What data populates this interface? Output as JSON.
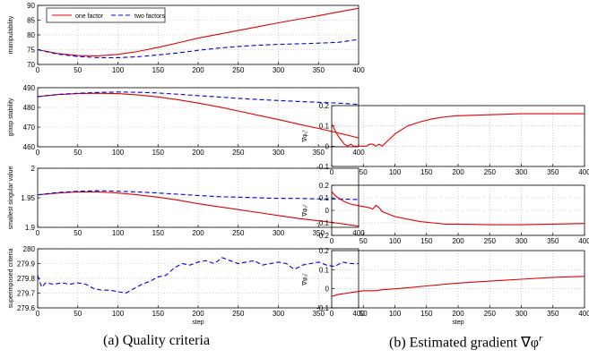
{
  "captions": {
    "a": "(a) Quality criteria",
    "b": "(b) Estimated gradient ∇φ"
  },
  "captions_superscript_b": "r",
  "chart_data": [
    {
      "id": "manipulability",
      "type": "line",
      "title": "",
      "xlabel": "",
      "ylabel": "manipulability",
      "xlim": [
        0,
        400
      ],
      "ylim": [
        70,
        90
      ],
      "xticks": [
        0,
        50,
        100,
        150,
        200,
        250,
        300,
        350,
        400
      ],
      "yticks": [
        70,
        75,
        80,
        85,
        90
      ],
      "grid": true,
      "legend": "top-left",
      "series": [
        {
          "name": "one factor",
          "color": "#e00000",
          "style": "solid",
          "x": [
            0,
            25,
            50,
            75,
            100,
            125,
            150,
            175,
            200,
            225,
            250,
            275,
            300,
            325,
            350,
            375,
            400
          ],
          "y": [
            75,
            73.7,
            73.0,
            72.9,
            73.4,
            74.4,
            75.8,
            77.3,
            78.9,
            80.2,
            81.5,
            82.8,
            84.1,
            85.3,
            86.5,
            87.8,
            89.0
          ]
        },
        {
          "name": "two factors",
          "color": "#0000dd",
          "style": "dashed",
          "x": [
            0,
            25,
            50,
            75,
            100,
            125,
            150,
            175,
            200,
            225,
            250,
            275,
            300,
            325,
            350,
            375,
            400
          ],
          "y": [
            75,
            73.5,
            72.7,
            72.3,
            72.3,
            72.6,
            73.2,
            73.9,
            74.8,
            75.5,
            76.1,
            76.5,
            76.8,
            77.0,
            77.2,
            77.5,
            78.5
          ]
        }
      ]
    },
    {
      "id": "grasp-stability",
      "type": "line",
      "title": "",
      "xlabel": "",
      "ylabel": "grasp stability",
      "xlim": [
        0,
        400
      ],
      "ylim": [
        460,
        490
      ],
      "xticks": [
        0,
        50,
        100,
        150,
        200,
        250,
        300,
        350,
        400
      ],
      "yticks": [
        460,
        470,
        480,
        490
      ],
      "grid": true,
      "series": [
        {
          "name": "",
          "color": "#e00000",
          "style": "solid",
          "x": [
            0,
            25,
            50,
            75,
            100,
            125,
            150,
            175,
            200,
            225,
            250,
            275,
            300,
            325,
            350,
            375,
            400
          ],
          "y": [
            485.5,
            486.5,
            487.0,
            487.2,
            487.0,
            486.3,
            485.3,
            483.9,
            482.2,
            480.3,
            478.2,
            476.0,
            473.8,
            471.5,
            469.3,
            467.0,
            464.5
          ]
        },
        {
          "name": "",
          "color": "#0000dd",
          "style": "dashed",
          "x": [
            0,
            25,
            50,
            75,
            100,
            125,
            150,
            175,
            200,
            225,
            250,
            275,
            300,
            325,
            350,
            375,
            400
          ],
          "y": [
            485.5,
            486.6,
            487.2,
            487.6,
            487.8,
            487.7,
            487.3,
            486.7,
            486.0,
            485.3,
            484.6,
            484.0,
            483.5,
            483.0,
            482.6,
            482.2,
            481.5
          ]
        }
      ]
    },
    {
      "id": "smallest-singular-value",
      "type": "line",
      "title": "",
      "xlabel": "",
      "ylabel": "smallest singular value",
      "xlim": [
        0,
        400
      ],
      "ylim": [
        1.9,
        2.0
      ],
      "xticks": [
        0,
        50,
        100,
        150,
        200,
        250,
        300,
        350,
        400
      ],
      "yticks": [
        1.9,
        1.95,
        2
      ],
      "grid": true,
      "series": [
        {
          "name": "",
          "color": "#e00000",
          "style": "solid",
          "x": [
            0,
            25,
            50,
            75,
            100,
            125,
            150,
            175,
            200,
            225,
            250,
            275,
            300,
            325,
            350,
            375,
            400
          ],
          "y": [
            1.955,
            1.958,
            1.96,
            1.96,
            1.958,
            1.955,
            1.951,
            1.946,
            1.94,
            1.935,
            1.93,
            1.925,
            1.92,
            1.915,
            1.911,
            1.907,
            1.902
          ]
        },
        {
          "name": "",
          "color": "#0000dd",
          "style": "dashed",
          "x": [
            0,
            25,
            50,
            75,
            100,
            125,
            150,
            175,
            200,
            225,
            250,
            275,
            300,
            325,
            350,
            375,
            400
          ],
          "y": [
            1.955,
            1.959,
            1.961,
            1.962,
            1.961,
            1.96,
            1.958,
            1.956,
            1.954,
            1.952,
            1.951,
            1.95,
            1.949,
            1.949,
            1.948,
            1.948,
            1.947
          ]
        }
      ]
    },
    {
      "id": "superimposed-criteria",
      "type": "line",
      "title": "",
      "xlabel": "step",
      "ylabel": "superimposed criteria",
      "xlim": [
        0,
        400
      ],
      "ylim": [
        279.6,
        280
      ],
      "xticks": [
        0,
        50,
        100,
        150,
        200,
        250,
        300,
        350,
        400
      ],
      "yticks": [
        279.6,
        279.7,
        279.8,
        279.9,
        280
      ],
      "grid": true,
      "series": [
        {
          "name": "",
          "color": "#0000dd",
          "style": "dashed",
          "x": [
            0,
            5,
            10,
            20,
            30,
            40,
            50,
            60,
            70,
            80,
            90,
            100,
            110,
            120,
            130,
            140,
            150,
            160,
            170,
            180,
            190,
            200,
            210,
            220,
            230,
            240,
            250,
            260,
            270,
            280,
            290,
            300,
            310,
            320,
            330,
            340,
            350,
            360,
            370,
            380,
            390,
            400
          ],
          "y": [
            279.82,
            279.74,
            279.77,
            279.76,
            279.77,
            279.76,
            279.77,
            279.76,
            279.73,
            279.72,
            279.72,
            279.71,
            279.7,
            279.73,
            279.76,
            279.78,
            279.81,
            279.82,
            279.87,
            279.9,
            279.89,
            279.91,
            279.92,
            279.9,
            279.94,
            279.92,
            279.9,
            279.91,
            279.92,
            279.89,
            279.9,
            279.91,
            279.9,
            279.86,
            279.89,
            279.9,
            279.91,
            279.89,
            279.88,
            279.91,
            279.9,
            279.9
          ]
        }
      ]
    },
    {
      "id": "gradient-1",
      "type": "line",
      "title": "",
      "xlabel": "",
      "ylabel": "∇φ₁ʳ",
      "xlim": [
        0,
        400
      ],
      "ylim": [
        -0.1,
        0.2
      ],
      "xticks": [
        0,
        50,
        100,
        150,
        200,
        250,
        300,
        350,
        400
      ],
      "yticks": [
        -0.1,
        0,
        0.1,
        0.2
      ],
      "grid": true,
      "series": [
        {
          "name": "",
          "color": "#e00000",
          "style": "solid",
          "x": [
            0,
            5,
            10,
            15,
            20,
            25,
            30,
            35,
            40,
            45,
            50,
            55,
            60,
            65,
            70,
            75,
            80,
            90,
            100,
            110,
            120,
            140,
            160,
            180,
            200,
            250,
            300,
            350,
            400
          ],
          "y": [
            0.11,
            0.08,
            0.05,
            0.03,
            0.01,
            0.0,
            0.01,
            0.0,
            0.0,
            0.0,
            0.0,
            0.0,
            0.01,
            0.01,
            0.0,
            0.01,
            0.0,
            0.03,
            0.06,
            0.08,
            0.1,
            0.12,
            0.135,
            0.145,
            0.15,
            0.155,
            0.16,
            0.16,
            0.16
          ]
        }
      ]
    },
    {
      "id": "gradient-2",
      "type": "line",
      "title": "",
      "xlabel": "",
      "ylabel": "∇φ₂ʳ",
      "xlim": [
        0,
        400
      ],
      "ylim": [
        -0.2,
        0.2
      ],
      "xticks": [
        0,
        50,
        100,
        150,
        200,
        250,
        300,
        350,
        400
      ],
      "yticks": [
        -0.2,
        -0.1,
        0,
        0.1,
        0.2
      ],
      "grid": true,
      "series": [
        {
          "name": "",
          "color": "#e00000",
          "style": "solid",
          "x": [
            0,
            5,
            10,
            20,
            30,
            40,
            50,
            60,
            65,
            70,
            75,
            80,
            90,
            100,
            120,
            140,
            160,
            180,
            200,
            250,
            300,
            350,
            400
          ],
          "y": [
            0.15,
            0.12,
            0.1,
            0.07,
            0.05,
            0.04,
            0.03,
            0.02,
            0.01,
            0.04,
            0.02,
            -0.01,
            -0.03,
            -0.05,
            -0.07,
            -0.09,
            -0.1,
            -0.11,
            -0.11,
            -0.115,
            -0.115,
            -0.11,
            -0.105
          ]
        }
      ]
    },
    {
      "id": "gradient-3",
      "type": "line",
      "title": "",
      "xlabel": "step",
      "ylabel": "∇φ₃ʳ",
      "xlim": [
        0,
        400
      ],
      "ylim": [
        -0.1,
        0.2
      ],
      "xticks": [
        0,
        50,
        100,
        150,
        200,
        250,
        300,
        350,
        400
      ],
      "yticks": [
        -0.1,
        0,
        0.1,
        0.2
      ],
      "grid": true,
      "series": [
        {
          "name": "",
          "color": "#e00000",
          "style": "solid",
          "x": [
            0,
            10,
            20,
            30,
            40,
            50,
            60,
            70,
            80,
            100,
            120,
            150,
            200,
            250,
            300,
            350,
            400
          ],
          "y": [
            -0.04,
            -0.03,
            -0.025,
            -0.02,
            -0.015,
            -0.01,
            -0.01,
            -0.01,
            -0.005,
            0.0,
            0.005,
            0.015,
            0.03,
            0.04,
            0.05,
            0.06,
            0.065
          ]
        }
      ]
    }
  ]
}
